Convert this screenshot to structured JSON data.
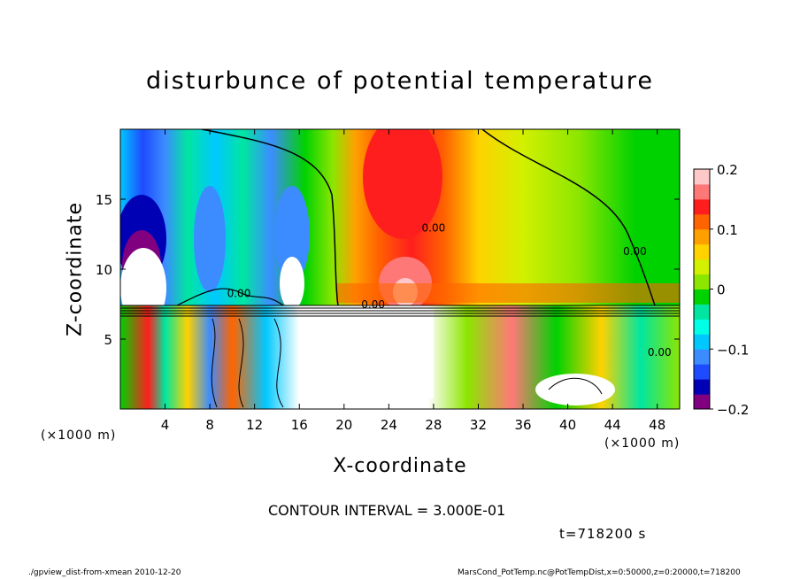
{
  "page": {
    "title": "disturbunce of potential temperature",
    "contour_note": "CONTOUR INTERVAL = 3.000E-01",
    "time_note": "t=718200 s",
    "footer_left": "./gpview_dist-from-xmean  2010-12-20",
    "footer_right": "MarsCond_PotTemp.nc@PotTempDist,x=0:50000,z=0:20000,t=718200"
  },
  "colors": {
    "accent": "#00cc00",
    "colorbar": [
      "#800080",
      "#0000b4",
      "#1e4bff",
      "#3c8cff",
      "#00c8ff",
      "#00ffe6",
      "#00e6a0",
      "#00d200",
      "#8ce600",
      "#d2f000",
      "#ffd200",
      "#ffa000",
      "#ff6400",
      "#ff1e1e",
      "#ff7878",
      "#ffc8c8"
    ]
  },
  "chart_data": {
    "type": "heatmap",
    "title": "disturbunce of potential temperature",
    "xlabel": "X-coordinate",
    "ylabel": "Z-coordinate",
    "x_unit": "(×1000 m)",
    "y_unit": "(×1000 m)",
    "xlim": [
      0,
      50
    ],
    "ylim": [
      0,
      20
    ],
    "x_ticks": [
      4,
      8,
      12,
      16,
      20,
      24,
      28,
      32,
      36,
      40,
      44,
      48
    ],
    "y_ticks": [
      5,
      10,
      15
    ],
    "colorbar": {
      "range": [
        -0.2,
        0.2
      ],
      "ticks": [
        {
          "value": 0.2,
          "label": "0.2"
        },
        {
          "value": 0.1,
          "label": "0.1"
        },
        {
          "value": 0.0,
          "label": "0"
        },
        {
          "value": -0.1,
          "label": "−0.1"
        },
        {
          "value": -0.2,
          "label": "−0.2"
        }
      ]
    },
    "contour_interval": 0.3,
    "contour_labels": [
      {
        "x": 28,
        "z": 12.7,
        "text": "0.00"
      },
      {
        "x": 46,
        "z": 11,
        "text": "0.00"
      },
      {
        "x": 10.6,
        "z": 8.0,
        "text": "0.00"
      },
      {
        "x": 22.6,
        "z": 7.2,
        "text": "0.00"
      },
      {
        "x": 48.2,
        "z": 3.8,
        "text": "0.00"
      }
    ],
    "upper_layer_mean_by_x": [
      {
        "x": 0,
        "theta": -0.12
      },
      {
        "x": 2,
        "theta": -0.2
      },
      {
        "x": 4,
        "theta": -0.18
      },
      {
        "x": 6,
        "theta": -0.04
      },
      {
        "x": 8,
        "theta": -0.08
      },
      {
        "x": 10,
        "theta": -0.04
      },
      {
        "x": 12,
        "theta": 0.0
      },
      {
        "x": 14,
        "theta": -0.12
      },
      {
        "x": 16,
        "theta": -0.1
      },
      {
        "x": 18,
        "theta": 0.0
      },
      {
        "x": 20,
        "theta": 0.08
      },
      {
        "x": 22,
        "theta": 0.13
      },
      {
        "x": 24,
        "theta": 0.17
      },
      {
        "x": 26,
        "theta": 0.19
      },
      {
        "x": 28,
        "theta": 0.16
      },
      {
        "x": 30,
        "theta": 0.12
      },
      {
        "x": 32,
        "theta": 0.08
      },
      {
        "x": 34,
        "theta": 0.07
      },
      {
        "x": 36,
        "theta": 0.07
      },
      {
        "x": 38,
        "theta": 0.06
      },
      {
        "x": 40,
        "theta": 0.05
      },
      {
        "x": 42,
        "theta": 0.04
      },
      {
        "x": 44,
        "theta": 0.03
      },
      {
        "x": 46,
        "theta": 0.02
      },
      {
        "x": 48,
        "theta": 0.01
      },
      {
        "x": 50,
        "theta": 0.0
      }
    ]
  }
}
